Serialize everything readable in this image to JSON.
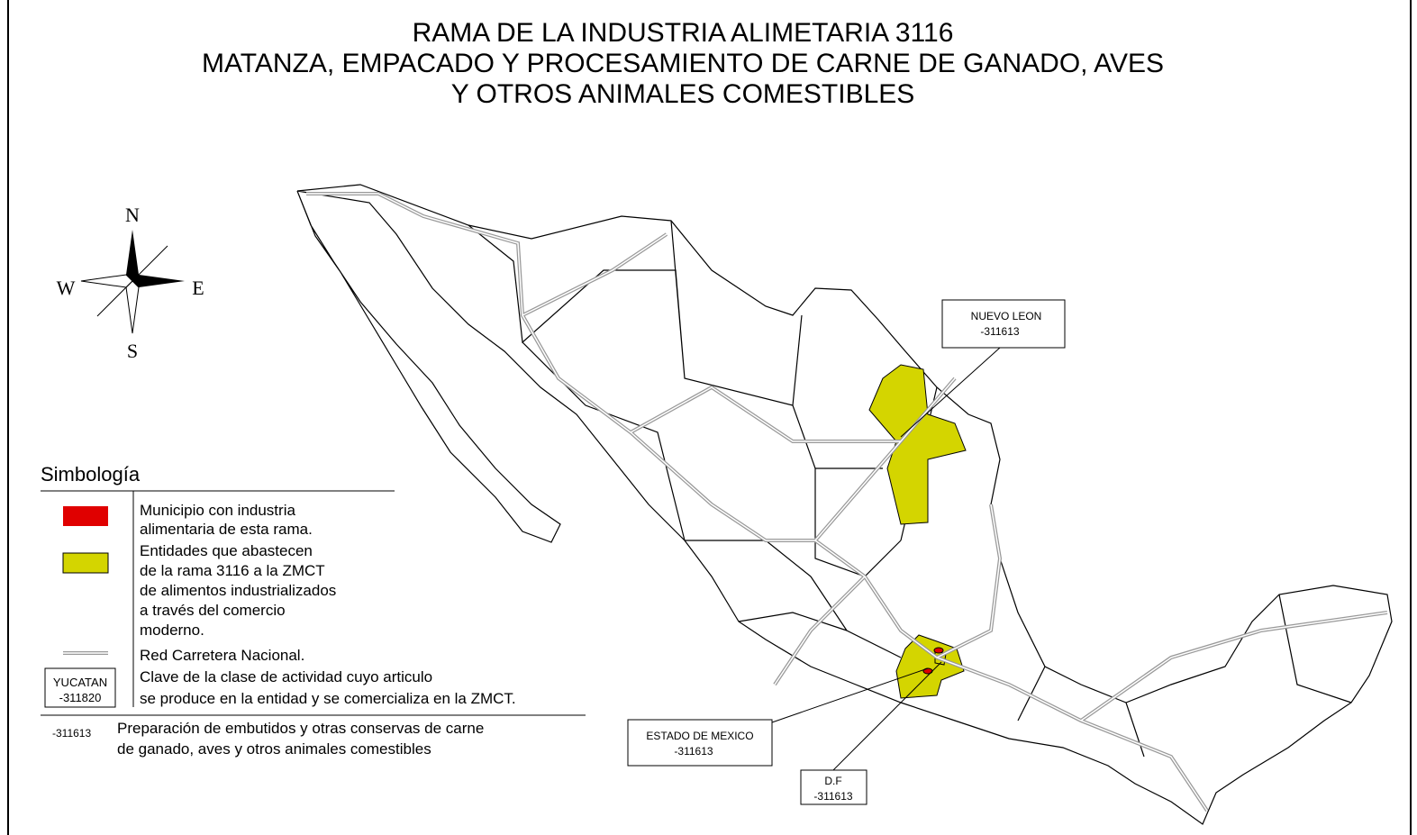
{
  "title": [
    "RAMA DE LA INDUSTRIA ALIMETARIA 3116",
    "MATANZA, EMPACADO Y PROCESAMIENTO DE CARNE DE GANADO, AVES",
    "Y OTROS ANIMALES COMESTIBLES"
  ],
  "compass": {
    "north": "N",
    "south": "S",
    "east": "E",
    "west": "W"
  },
  "legend": {
    "title": "Simbología",
    "municipio": [
      "Municipio con industria",
      "alimentaria de esta rama."
    ],
    "entidades": [
      "Entidades que abastecen",
      "de la rama 3116 a  la ZMCT",
      "de alimentos  industrializados",
      "a través del comercio",
      "moderno."
    ],
    "carretera": "Red Carretera Nacional.",
    "key_box": [
      "YUCATAN",
      "-311820"
    ],
    "clave": [
      "Clave de la clase de actividad cuyo articulo",
      "se produce en la entidad y se comercializa  en la ZMCT."
    ],
    "note": {
      "code": "-311613",
      "lines": [
        "Preparación de embutidos y otras conservas de carne",
        "de ganado, aves y otros  animales comestibles"
      ]
    }
  },
  "callouts": [
    {
      "name": "NUEVO LEON",
      "code": "-311613"
    },
    {
      "name": "ESTADO DE MEXICO",
      "code": "-311613"
    },
    {
      "name": "D.F",
      "code": "-311613"
    }
  ]
}
